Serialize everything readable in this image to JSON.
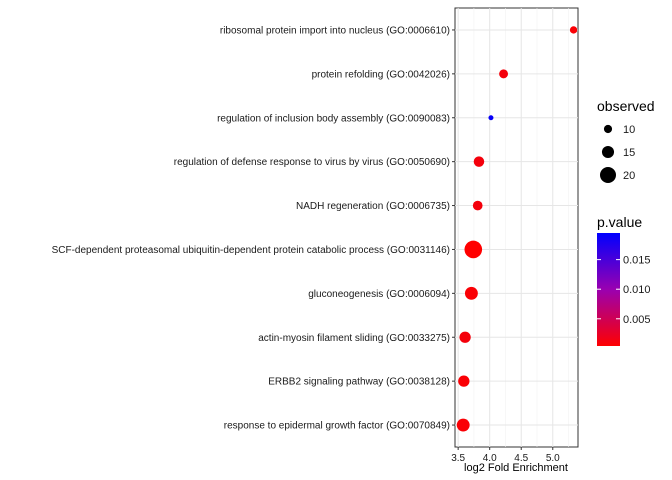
{
  "chart_data": {
    "type": "scatter",
    "title": "",
    "xlabel": "log2 Fold Enrichment",
    "ylabel": "",
    "xlim": [
      3.45,
      5.4
    ],
    "xticks": [
      "3.5",
      "4.0",
      "4.5",
      "5.0"
    ],
    "xtick_values": [
      3.5,
      4.0,
      4.5,
      5.0
    ],
    "grid": true,
    "categories": [
      "ribosomal protein import into nucleus (GO:0006610)",
      "protein refolding (GO:0042026)",
      "regulation of inclusion body assembly (GO:0090083)",
      "regulation of defense response to virus by virus (GO:0050690)",
      "NADH regeneration (GO:0006735)",
      "SCF-dependent proteasomal ubiquitin-dependent protein catabolic process (GO:0031146)",
      "gluconeogenesis (GO:0006094)",
      "actin-myosin filament sliding (GO:0033275)",
      "ERBB2 signaling pathway (GO:0038128)",
      "response to epidermal growth factor (GO:0070849)"
    ],
    "points": [
      {
        "x": 5.33,
        "observed": 9,
        "p_value": 0.0008
      },
      {
        "x": 4.22,
        "observed": 11,
        "p_value": 0.0012
      },
      {
        "x": 4.02,
        "observed": 6,
        "p_value": 0.019
      },
      {
        "x": 3.83,
        "observed": 13,
        "p_value": 0.0012
      },
      {
        "x": 3.81,
        "observed": 12,
        "p_value": 0.0012
      },
      {
        "x": 3.74,
        "observed": 22,
        "p_value": 0.0004
      },
      {
        "x": 3.71,
        "observed": 16,
        "p_value": 0.0008
      },
      {
        "x": 3.61,
        "observed": 14,
        "p_value": 0.0012
      },
      {
        "x": 3.59,
        "observed": 14,
        "p_value": 0.0008
      },
      {
        "x": 3.58,
        "observed": 16,
        "p_value": 0.0008
      }
    ],
    "legend_size": {
      "title": "observed",
      "items": [
        {
          "label": "10",
          "value": 10
        },
        {
          "label": "15",
          "value": 15
        },
        {
          "label": "20",
          "value": 20
        }
      ]
    },
    "legend_color": {
      "title": "p.value",
      "ticks": [
        {
          "label": "0.015",
          "value": 0.015
        },
        {
          "label": "0.010",
          "value": 0.01
        },
        {
          "label": "0.005",
          "value": 0.005
        }
      ],
      "range": [
        0.0004,
        0.0195
      ],
      "low_color": "#ff0000",
      "high_color": "#0000ff"
    },
    "legend_placement": "right"
  }
}
